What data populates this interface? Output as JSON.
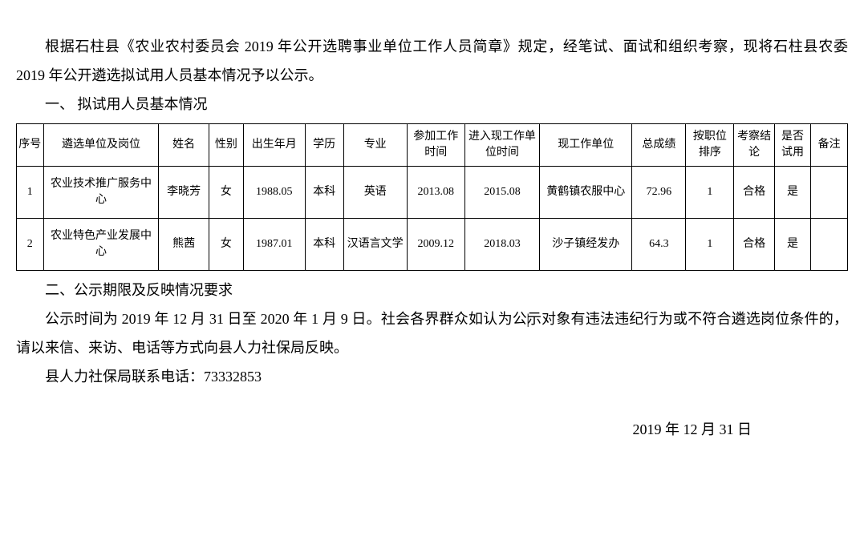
{
  "paragraphs": {
    "p1": "根据石柱县《农业农村委员会 2019 年公开选聘事业单位工作人员简章》规定，经笔试、面试和组织考察，现将石柱县农委 2019 年公开遴选拟试用人员基本情况予以公示。",
    "p2": "一、 拟试用人员基本情况",
    "p3": "二、公示期限及反映情况要求",
    "p4a": "公示时间为 2019 年 12 月 31 日至 2020 年 1 月 9 日。社会各界群众如认",
    "p4b": "为公示对象有违法违纪行为或不符合遴选岗位条件的，请以来信、来访、电话等方式向县人力社保局反映。",
    "p5": "县人力社保局联系电话：73332853",
    "date": "2019 年 12 月 31 日"
  },
  "table": {
    "headers": [
      "序号",
      "遴选单位及岗位",
      "姓名",
      "性别",
      "出生年月",
      "学历",
      "专业",
      "参加工作时间",
      "进入现工作单位时间",
      "现工作单位",
      "总成绩",
      "按职位排序",
      "考察结论",
      "是否试用",
      "备注"
    ],
    "col_widths": [
      "28px",
      "120px",
      "52px",
      "36px",
      "64px",
      "40px",
      "66px",
      "60px",
      "78px",
      "96px",
      "56px",
      "50px",
      "42px",
      "38px",
      "38px"
    ],
    "rows": [
      [
        "1",
        "农业技术推广服务中心",
        "李晓芳",
        "女",
        "1988.05",
        "本科",
        "英语",
        "2013.08",
        "2015.08",
        "黄鹤镇农服中心",
        "72.96",
        "1",
        "合格",
        "是",
        ""
      ],
      [
        "2",
        "农业特色产业发展中心",
        "熊茜",
        "女",
        "1987.01",
        "本科",
        "汉语言文学",
        "2009.12",
        "2018.03",
        "沙子镇经发办",
        "64.3",
        "1",
        "合格",
        "是",
        ""
      ]
    ]
  },
  "styling": {
    "body_font_size": 18,
    "table_font_size": 14,
    "text_color": "#000000",
    "bg_color": "#ffffff",
    "border_color": "#000000",
    "line_height": 2.0
  }
}
